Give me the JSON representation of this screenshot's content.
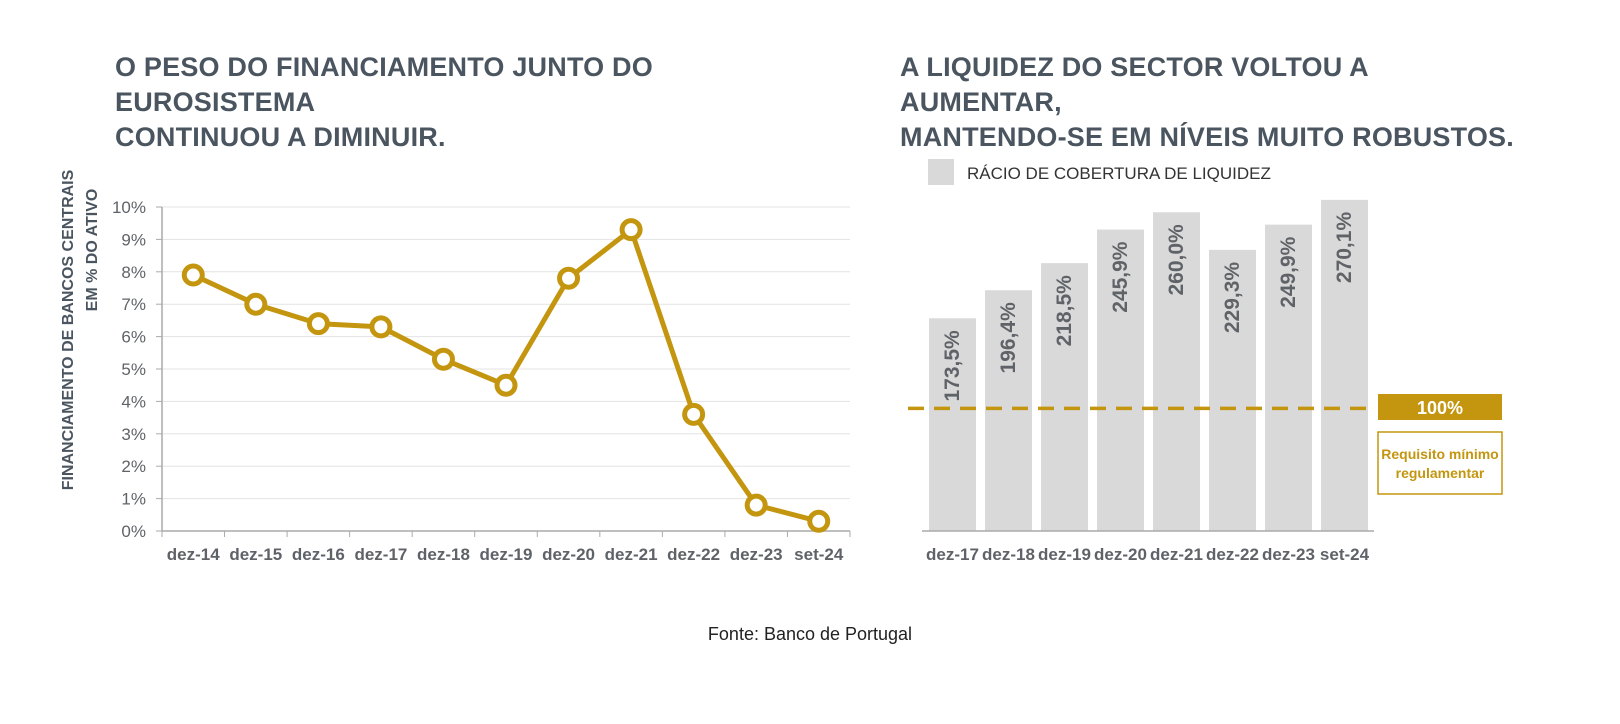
{
  "left_panel": {
    "title_line1": "O PESO DO FINANCIAMENTO JUNTO DO EUROSISTEMA",
    "title_line2": "CONTINUOU A DIMINUIR."
  },
  "right_panel": {
    "title_line1": "A LIQUIDEZ DO SECTOR VOLTOU A AUMENTAR,",
    "title_line2": "MANTENDO-SE EM NÍVEIS MUITO ROBUSTOS."
  },
  "source": "Fonte: Banco de Portugal",
  "colors": {
    "line": "#c4960f",
    "bar": "#d9d9d9",
    "threshold": "#c4960f",
    "axis_text": "#5f6368",
    "title": "#4a5560"
  },
  "chart_data": [
    {
      "type": "line",
      "title": "",
      "ylabel_line1": "FINANCIAMENTO DE BANCOS CENTRAIS",
      "ylabel_line2": "EM % DO ATIVO",
      "xlabel": "",
      "ylim": [
        0,
        10
      ],
      "grid": true,
      "y_ticks": [
        "0%",
        "1%",
        "2%",
        "3%",
        "4%",
        "5%",
        "6%",
        "7%",
        "8%",
        "9%",
        "10%"
      ],
      "categories": [
        "dez-14",
        "dez-15",
        "dez-16",
        "dez-17",
        "dez-18",
        "dez-19",
        "dez-20",
        "dez-21",
        "dez-22",
        "dez-23",
        "set-24"
      ],
      "series": [
        {
          "values": [
            7.9,
            7.0,
            6.4,
            6.3,
            5.3,
            4.5,
            7.8,
            9.3,
            3.6,
            0.8,
            0.3
          ]
        }
      ]
    },
    {
      "type": "bar",
      "title": "",
      "legend": {
        "label": "RÁCIO DE COBERTURA DE LIQUIDEZ",
        "position": "top-left"
      },
      "categories": [
        "dez-17",
        "dez-18",
        "dez-19",
        "dez-20",
        "dez-21",
        "dez-22",
        "dez-23",
        "set-24"
      ],
      "values": [
        173.5,
        196.4,
        218.5,
        245.9,
        260.0,
        229.3,
        249.9,
        270.1
      ],
      "data_labels": [
        "173,5%",
        "196,4%",
        "218,5%",
        "245,9%",
        "260,0%",
        "229,3%",
        "249,9%",
        "270,1%"
      ],
      "ylim": [
        0,
        270
      ],
      "threshold": {
        "value": 100,
        "label": "100%",
        "note_line1": "Requisito mínimo",
        "note_line2": "regulamentar"
      }
    }
  ]
}
